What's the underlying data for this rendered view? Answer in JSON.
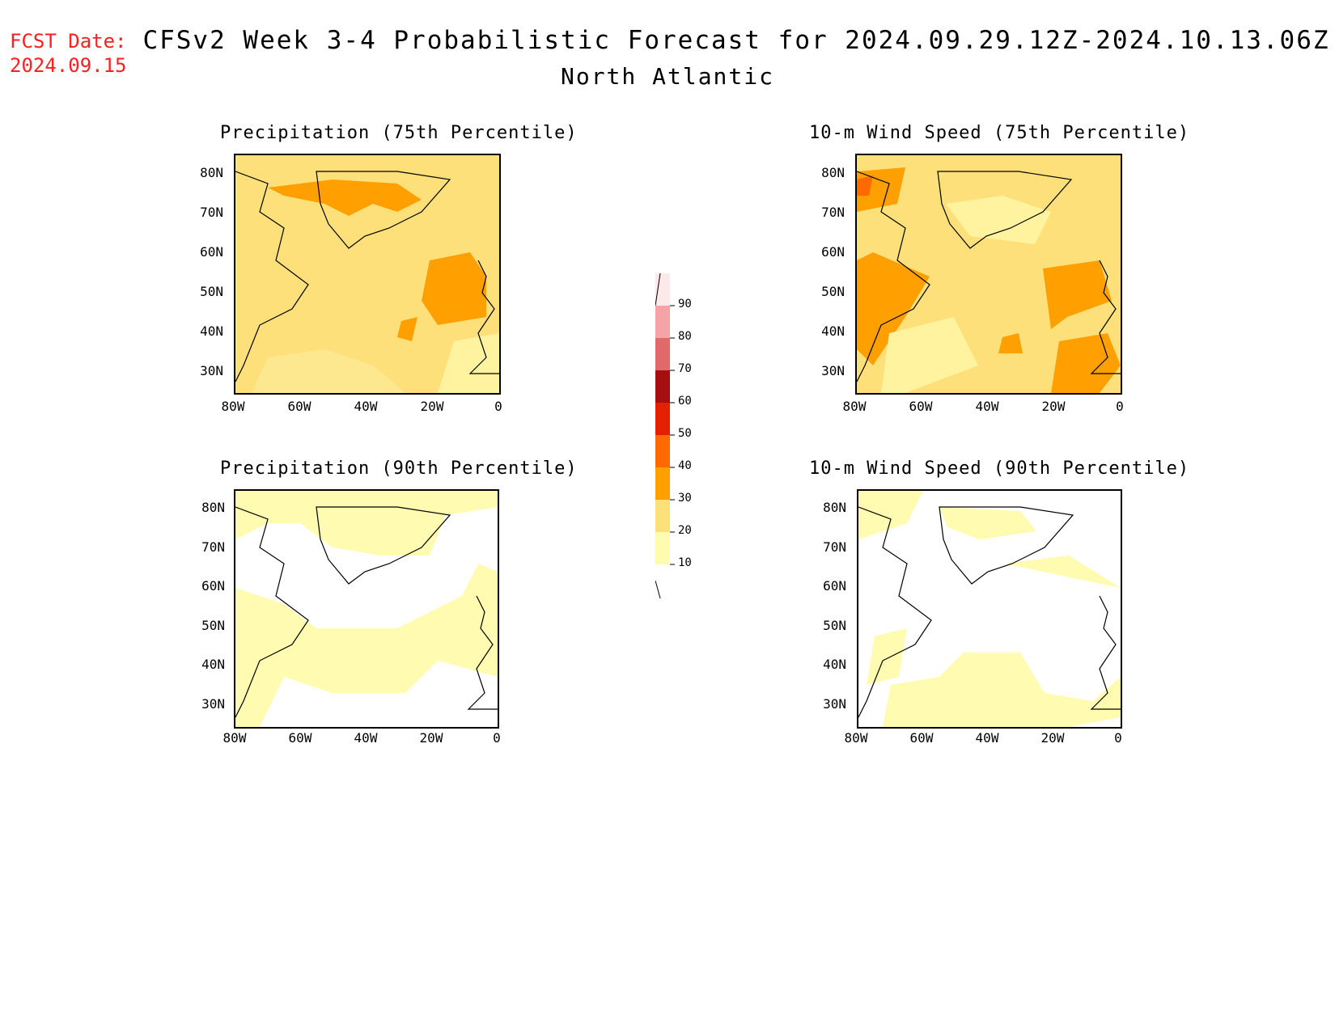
{
  "header": {
    "fcst_label": "FCST Date:",
    "fcst_date": "2024.09.15",
    "title": "CFSv2 Week 3-4 Probabilistic Forecast for 2024.09.29.12Z-2024.10.13.06Z",
    "subtitle": "North Atlantic"
  },
  "axes": {
    "lat_labels": [
      "80N",
      "70N",
      "60N",
      "50N",
      "40N",
      "30N"
    ],
    "lon_labels": [
      "80W",
      "60W",
      "40W",
      "20W",
      "0"
    ]
  },
  "panels": [
    {
      "id": "precip75",
      "title": "Precipitation (75th Percentile)",
      "base_level": "20-30"
    },
    {
      "id": "wind75",
      "title": "10-m Wind Speed (75th Percentile)",
      "base_level": "20-30"
    },
    {
      "id": "precip90",
      "title": "Precipitation (90th Percentile)",
      "base_level": "10-20"
    },
    {
      "id": "wind90",
      "title": "10-m Wind Speed (90th Percentile)",
      "base_level": "10-20"
    }
  ],
  "colorbar": {
    "labels": [
      "90",
      "80",
      "70",
      "60",
      "50",
      "40",
      "30",
      "20",
      "10"
    ],
    "colors": [
      "#fde8ea",
      "#f4a3a6",
      "#e06a6a",
      "#a50f0f",
      "#e32000",
      "#ff6a00",
      "#ffa000",
      "#fde07a",
      "#fffbb0"
    ]
  }
}
